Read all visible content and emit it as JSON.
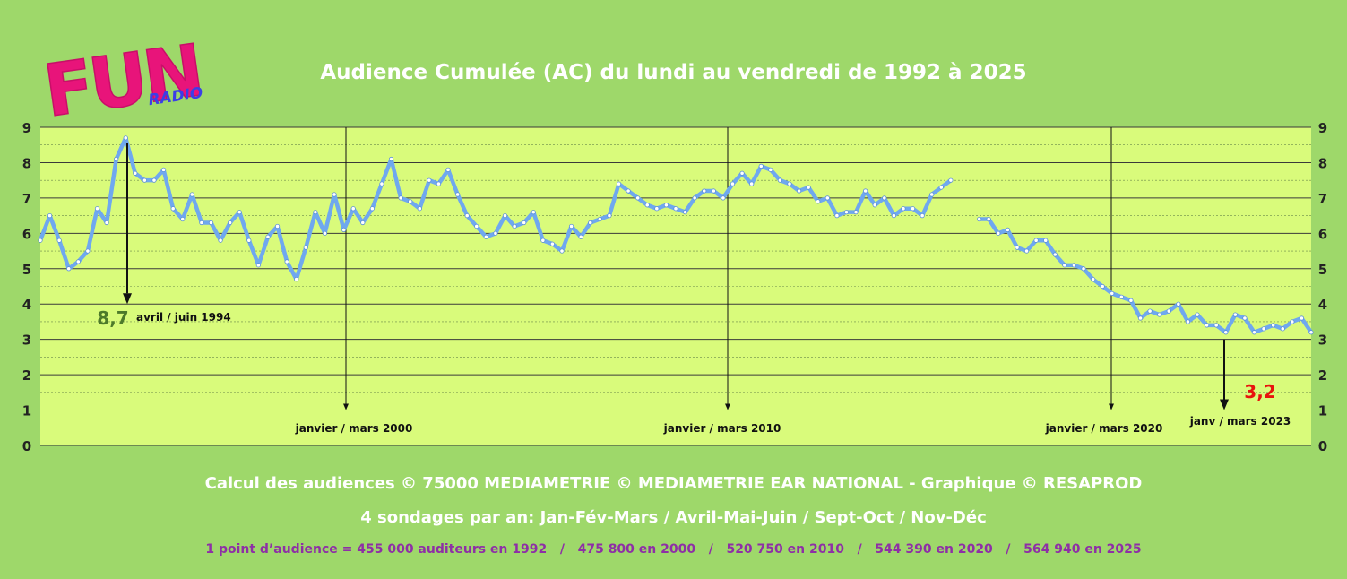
{
  "header": {
    "logo_text": "FUN",
    "logo_sub": "RADIO",
    "title": "Audience Cumulée (AC) du lundi au vendredi de 1992 à 2025"
  },
  "footer": {
    "line1": "Calcul des audiences © 75000 MEDIAMETRIE © MEDIAMETRIE EAR NATIONAL - Graphique © RESAPROD",
    "line2": "4 sondages par an: Jan-Fév-Mars / Avril-Mai-Juin / Sept-Oct / Nov-Déc",
    "line3": "1 point d’audience = 455 000 auditeurs en 1992   /   475 800 en 2000   /   520 750 en 2010   /   544 390 en 2020   /   564 940 en 2025"
  },
  "colors": {
    "background": "#9ed86a",
    "plot_background": "#d9fb7b",
    "line": "#6fa8ef",
    "max_value": "#4d7a2a",
    "min_value": "#e8140c",
    "logo": "#e8147a",
    "logo_sub": "#3b3fe6"
  },
  "chart_data": {
    "type": "line",
    "title": "Audience Cumulée (AC) du lundi au vendredi de 1992 à 2025",
    "ylim": [
      0,
      9
    ],
    "yticks": [
      0,
      1,
      2,
      3,
      4,
      5,
      6,
      7,
      8,
      9
    ],
    "grid": true,
    "series": [
      {
        "segments": [
          [
            5.8,
            6.5,
            5.8,
            5.0,
            5.2,
            5.5,
            6.7,
            6.3,
            8.1,
            8.7,
            7.7,
            7.5,
            7.5,
            7.8,
            6.7,
            6.4,
            7.1,
            6.3,
            6.3,
            5.8,
            6.3,
            6.6,
            5.8,
            5.1,
            5.9,
            6.2,
            5.2,
            4.7,
            5.6,
            6.6,
            6.0,
            7.1,
            6.1,
            6.7,
            6.3,
            6.7,
            7.4,
            8.1,
            7.0,
            6.9,
            6.7,
            7.5,
            7.4,
            7.8,
            7.1,
            6.5,
            6.2,
            5.9,
            6.0,
            6.5,
            6.2,
            6.3,
            6.6,
            5.8,
            5.7,
            5.5,
            6.2,
            5.9,
            6.3,
            6.4,
            6.5,
            7.4,
            7.2,
            7.0,
            6.8,
            6.7,
            6.8,
            6.7,
            6.6,
            7.0,
            7.2,
            7.2,
            7.0,
            7.4,
            7.7,
            7.4,
            7.9,
            7.8,
            7.5,
            7.4,
            7.2,
            7.3,
            6.9,
            7.0,
            6.5,
            6.6,
            6.6,
            7.2,
            6.8,
            7.0,
            6.5,
            6.7,
            6.7,
            6.5,
            7.1,
            7.3,
            7.5
          ],
          [
            6.4,
            6.4,
            6.0,
            6.1,
            5.6,
            5.5,
            5.8,
            5.8,
            5.4,
            5.1,
            5.1,
            5.0,
            4.7,
            4.5,
            4.3,
            4.2,
            4.1,
            3.6,
            3.8,
            3.7,
            3.8,
            4.0,
            3.5,
            3.7,
            3.4,
            3.4,
            3.2,
            3.7,
            3.6,
            3.2,
            3.3,
            3.4,
            3.3,
            3.5,
            3.6,
            3.2
          ]
        ]
      }
    ],
    "period_markers": [
      {
        "label": "janvier / mars 2000"
      },
      {
        "label": "janvier / mars 2010"
      },
      {
        "label": "janvier / mars 2020"
      }
    ],
    "annotations": [
      {
        "value": "8,7",
        "label": "avril / juin 1994",
        "kind": "max"
      },
      {
        "value": "3,2",
        "label": "janv / mars 2023",
        "kind": "min"
      }
    ]
  }
}
